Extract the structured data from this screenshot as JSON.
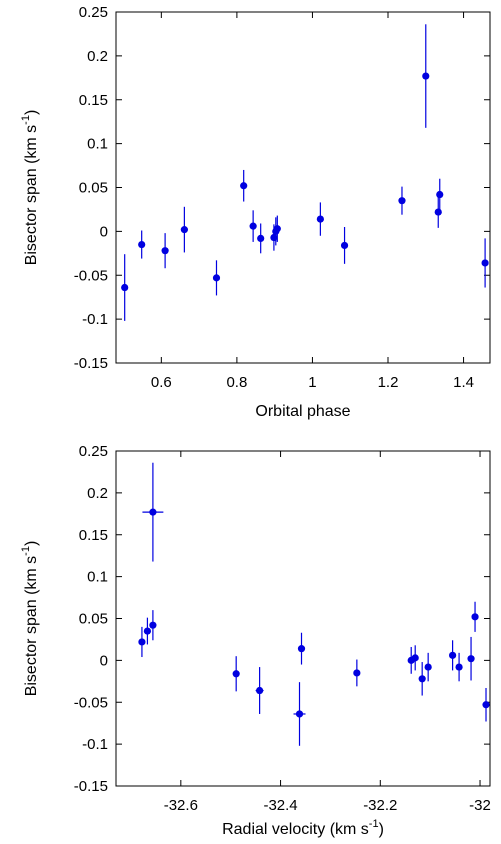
{
  "chart_data": [
    {
      "type": "scatter",
      "xlabel": "Orbital phase",
      "ylabel": "Bisector span (km s",
      "ylabel_sup": "-1",
      "ylabel_tail": ")",
      "xlim": [
        0.48,
        1.47
      ],
      "ylim": [
        -0.15,
        0.25
      ],
      "x_ticks": [
        0.6,
        0.8,
        1.0,
        1.2,
        1.4
      ],
      "x_tick_labels": [
        "0.6",
        "0.8",
        "1",
        "1.2",
        "1.4"
      ],
      "y_ticks": [
        -0.15,
        -0.1,
        -0.05,
        0.0,
        0.05,
        0.1,
        0.15,
        0.2,
        0.25
      ],
      "y_tick_labels": [
        "-0.15",
        "-0.1",
        "-0.05",
        "0",
        "0.05",
        "0.1",
        "0.15",
        "0.2",
        "0.25"
      ],
      "grid": false,
      "marker_color": "#0000e0",
      "points": [
        {
          "x": 0.503,
          "y": -0.064,
          "yerr": 0.038
        },
        {
          "x": 0.548,
          "y": -0.015,
          "yerr": 0.016
        },
        {
          "x": 0.61,
          "y": -0.022,
          "yerr": 0.02
        },
        {
          "x": 0.661,
          "y": 0.002,
          "yerr": 0.026
        },
        {
          "x": 0.746,
          "y": -0.053,
          "yerr": 0.02
        },
        {
          "x": 0.818,
          "y": 0.052,
          "yerr": 0.018
        },
        {
          "x": 0.843,
          "y": 0.006,
          "yerr": 0.018
        },
        {
          "x": 0.863,
          "y": -0.008,
          "yerr": 0.017
        },
        {
          "x": 0.898,
          "y": -0.007,
          "yerr": 0.015
        },
        {
          "x": 0.903,
          "y": 0.0,
          "yerr": 0.016
        },
        {
          "x": 0.907,
          "y": 0.003,
          "yerr": 0.015
        },
        {
          "x": 1.021,
          "y": 0.014,
          "yerr": 0.019
        },
        {
          "x": 1.085,
          "y": -0.016,
          "yerr": 0.021
        },
        {
          "x": 1.237,
          "y": 0.035,
          "yerr": 0.016
        },
        {
          "x": 1.3,
          "y": 0.177,
          "yerr": 0.059
        },
        {
          "x": 1.333,
          "y": 0.022,
          "yerr": 0.018
        },
        {
          "x": 1.337,
          "y": 0.042,
          "yerr": 0.018
        },
        {
          "x": 1.457,
          "y": -0.036,
          "yerr": 0.028
        }
      ]
    },
    {
      "type": "scatter",
      "xlabel": "Radial velocity (km s",
      "xlabel_sup": "-1",
      "xlabel_tail": ")",
      "ylabel": "Bisector span (km s",
      "ylabel_sup": "-1",
      "ylabel_tail": ")",
      "xlim": [
        -32.73,
        -31.98
      ],
      "ylim": [
        -0.15,
        0.25
      ],
      "x_ticks": [
        -32.6,
        -32.4,
        -32.2,
        -32.0
      ],
      "x_tick_labels": [
        "-32.6",
        "-32.4",
        "-32.2",
        "-32"
      ],
      "y_ticks": [
        -0.15,
        -0.1,
        -0.05,
        0.0,
        0.05,
        0.1,
        0.15,
        0.2,
        0.25
      ],
      "y_tick_labels": [
        "-0.15",
        "-0.1",
        "-0.05",
        "0",
        "0.05",
        "0.1",
        "0.15",
        "0.2",
        "0.25"
      ],
      "grid": false,
      "marker_color": "#0000e0",
      "points": [
        {
          "x": -32.678,
          "y": 0.022,
          "yerr": 0.018,
          "xerr": 0.005
        },
        {
          "x": -32.667,
          "y": 0.035,
          "yerr": 0.016,
          "xerr": 0.005
        },
        {
          "x": -32.656,
          "y": 0.042,
          "yerr": 0.018,
          "xerr": 0.005
        },
        {
          "x": -32.656,
          "y": 0.177,
          "yerr": 0.059,
          "xerr": 0.021
        },
        {
          "x": -32.489,
          "y": -0.016,
          "yerr": 0.021,
          "xerr": 0.005
        },
        {
          "x": -32.442,
          "y": -0.036,
          "yerr": 0.028,
          "xerr": 0.008
        },
        {
          "x": -32.362,
          "y": -0.064,
          "yerr": 0.038,
          "xerr": 0.012
        },
        {
          "x": -32.358,
          "y": 0.014,
          "yerr": 0.019,
          "xerr": 0.005
        },
        {
          "x": -32.247,
          "y": -0.015,
          "yerr": 0.016,
          "xerr": 0.005
        },
        {
          "x": -32.138,
          "y": 0.0,
          "yerr": 0.016,
          "xerr": 0.005
        },
        {
          "x": -32.13,
          "y": 0.003,
          "yerr": 0.015,
          "xerr": 0.005
        },
        {
          "x": -32.116,
          "y": -0.022,
          "yerr": 0.02,
          "xerr": 0.005
        },
        {
          "x": -32.104,
          "y": -0.008,
          "yerr": 0.017,
          "xerr": 0.005
        },
        {
          "x": -32.055,
          "y": 0.006,
          "yerr": 0.018,
          "xerr": 0.005
        },
        {
          "x": -32.042,
          "y": -0.008,
          "yerr": 0.017,
          "xerr": 0.005
        },
        {
          "x": -32.018,
          "y": 0.002,
          "yerr": 0.026,
          "xerr": 0.005
        },
        {
          "x": -32.01,
          "y": 0.052,
          "yerr": 0.018,
          "xerr": 0.005
        },
        {
          "x": -31.988,
          "y": -0.053,
          "yerr": 0.02,
          "xerr": 0.005
        }
      ]
    }
  ]
}
